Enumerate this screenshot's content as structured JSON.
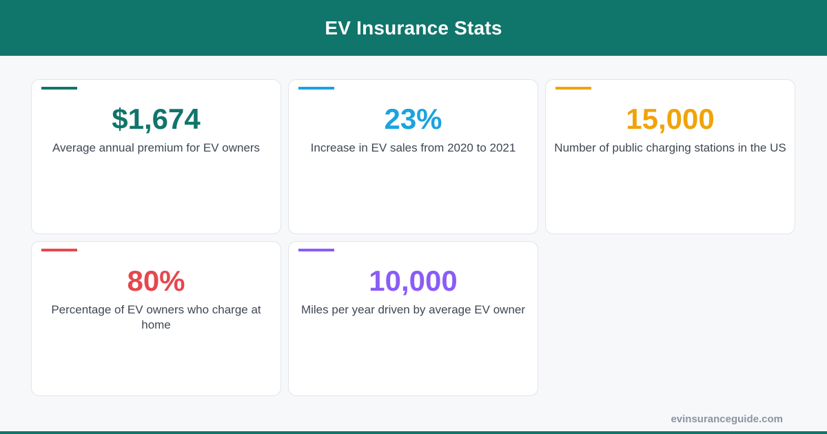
{
  "header": {
    "title": "EV Insurance Stats"
  },
  "stats": [
    {
      "value": "$1,674",
      "label": "Average annual premium for EV owners",
      "color": "#10756b"
    },
    {
      "value": "23%",
      "label": "Increase in EV sales from 2020 to 2021",
      "color": "#1aa3df"
    },
    {
      "value": "15,000",
      "label": "Number of public charging stations in the US",
      "color": "#f0a30a"
    },
    {
      "value": "80%",
      "label": "Percentage of EV owners who charge at home",
      "color": "#e5484d"
    },
    {
      "value": "10,000",
      "label": "Miles per year driven by average EV owner",
      "color": "#8b5cf6"
    }
  ],
  "footer": {
    "url": "evinsuranceguide.com"
  }
}
